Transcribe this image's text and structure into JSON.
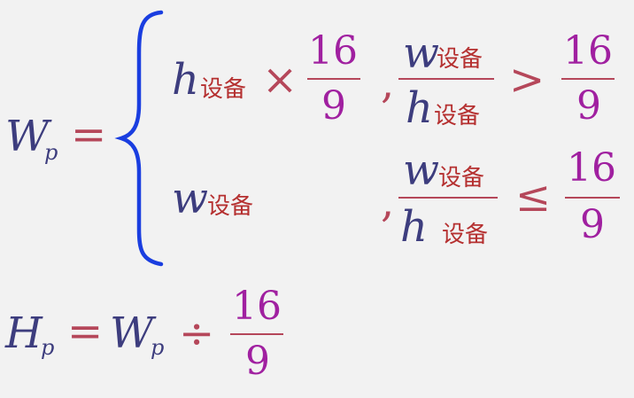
{
  "formula": {
    "wp": {
      "var": "W",
      "sub": "p",
      "eq": "="
    },
    "case1": {
      "h": "h",
      "h_sub": "设备",
      "times": "×",
      "frac1_num": "16",
      "frac1_den": "9",
      "comma": ",",
      "cond_num": "w",
      "cond_num_sub": "设备",
      "cond_den": "h",
      "cond_den_sub": "设备",
      "rel": ">",
      "frac2_num": "16",
      "frac2_den": "9"
    },
    "case2": {
      "w": "w",
      "w_sub": "设备",
      "comma": ",",
      "cond_num": "w",
      "cond_num_sub": "设备",
      "cond_den": "h",
      "cond_den_sub": "设备",
      "rel": "≤",
      "frac_num": "16",
      "frac_den": "9"
    },
    "hp": {
      "var": "H",
      "sub": "p",
      "eq": "=",
      "rhs_var": "W",
      "rhs_sub": "p",
      "div": "÷",
      "frac_num": "16",
      "frac_den": "9"
    }
  },
  "colors": {
    "variable": "#3d3d7e",
    "operator": "#b5475a",
    "number": "#a020a0",
    "chinese": "#b53030",
    "brace": "#1a3ee0",
    "background": "#f2f2f2"
  }
}
